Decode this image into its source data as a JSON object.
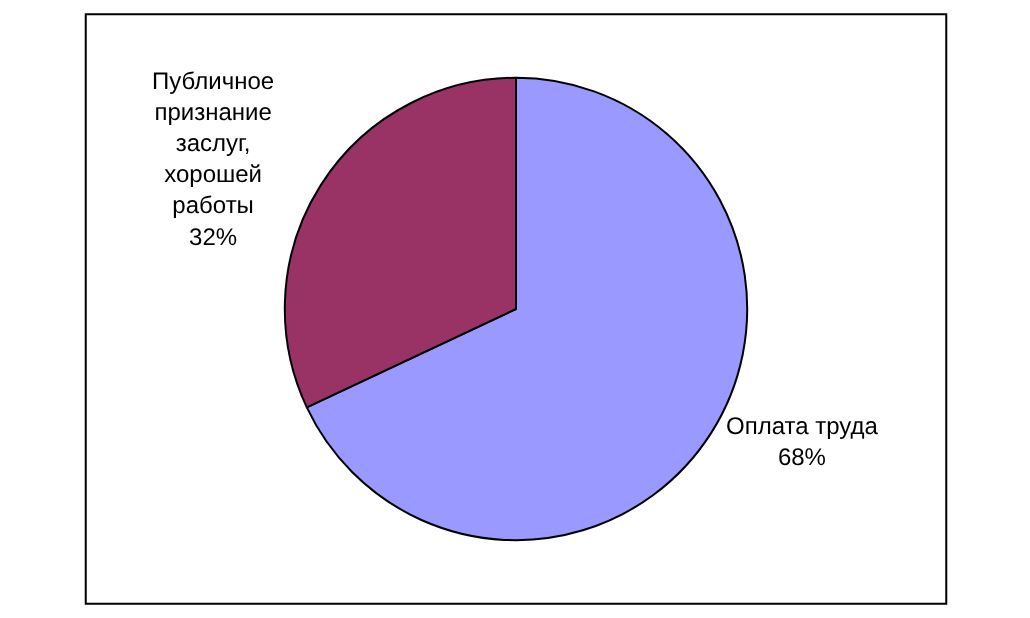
{
  "chart_data": {
    "type": "pie",
    "categories": [
      "Оплата труда",
      "Публичное признание заслуг, хорошей работы"
    ],
    "values": [
      68,
      32
    ],
    "value_labels": [
      "68%",
      "32%"
    ],
    "colors": [
      "#9999ff",
      "#993366"
    ],
    "legend": false
  }
}
